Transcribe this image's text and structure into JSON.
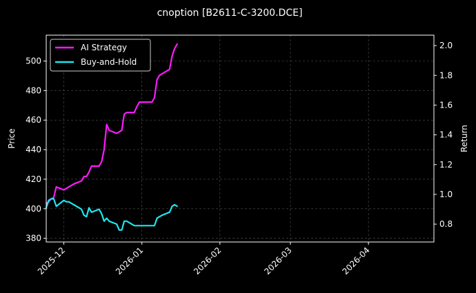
{
  "chart_data": {
    "type": "line",
    "title": "cnoption [B2611-C-3200.DCE]",
    "ylabel_left": "Price",
    "ylabel_right": "Return",
    "y_left_lim": [
      377.5,
      517.5
    ],
    "y_right_lim": [
      0.68,
      2.07
    ],
    "x_range": [
      "2025-11-24",
      "2026-04-27"
    ],
    "x_ticks": [
      "2025-12",
      "2026-01",
      "2026-02",
      "2026-03",
      "2026-04"
    ],
    "y_left_ticks": [
      "380",
      "400",
      "420",
      "440",
      "460",
      "480",
      "500"
    ],
    "y_right_ticks": [
      "0.8",
      "1.0",
      "1.2",
      "1.4",
      "1.6",
      "1.8",
      "2.0"
    ],
    "grid": true,
    "legend_position": "top-left",
    "background": "#000000",
    "series": [
      {
        "name": "AI Strategy",
        "axis": "right",
        "color": "#ff1aff",
        "x": [
          "2025-11-24",
          "2025-11-25",
          "2025-11-26",
          "2025-11-27",
          "2025-11-28",
          "2025-12-01",
          "2025-12-02",
          "2025-12-03",
          "2025-12-04",
          "2025-12-05",
          "2025-12-08",
          "2025-12-09",
          "2025-12-10",
          "2025-12-11",
          "2025-12-12",
          "2025-12-15",
          "2025-12-16",
          "2025-12-17",
          "2025-12-18",
          "2025-12-19",
          "2025-12-22",
          "2025-12-23",
          "2025-12-24",
          "2025-12-25",
          "2025-12-26",
          "2025-12-29",
          "2025-12-30",
          "2025-12-31",
          "2026-01-05",
          "2026-01-06",
          "2026-01-07",
          "2026-01-08",
          "2026-01-09",
          "2026-01-12",
          "2026-01-13",
          "2026-01-14",
          "2026-01-15"
        ],
        "values": [
          0.94,
          0.95,
          0.97,
          0.98,
          1.05,
          1.03,
          1.04,
          1.05,
          1.06,
          1.07,
          1.09,
          1.12,
          1.12,
          1.15,
          1.19,
          1.19,
          1.22,
          1.3,
          1.47,
          1.43,
          1.41,
          1.42,
          1.43,
          1.54,
          1.55,
          1.55,
          1.59,
          1.62,
          1.62,
          1.65,
          1.77,
          1.8,
          1.81,
          1.84,
          1.93,
          1.98,
          2.01
        ]
      },
      {
        "name": "Buy-and-Hold",
        "axis": "right",
        "color": "#1ee6f0",
        "x": [
          "2025-11-24",
          "2025-11-25",
          "2025-11-26",
          "2025-11-27",
          "2025-11-28",
          "2025-12-01",
          "2025-12-02",
          "2025-12-03",
          "2025-12-04",
          "2025-12-05",
          "2025-12-08",
          "2025-12-09",
          "2025-12-10",
          "2025-12-11",
          "2025-12-12",
          "2025-12-15",
          "2025-12-16",
          "2025-12-17",
          "2025-12-18",
          "2025-12-19",
          "2025-12-22",
          "2025-12-23",
          "2025-12-24",
          "2025-12-25",
          "2025-12-26",
          "2025-12-29",
          "2025-12-30",
          "2025-12-31",
          "2026-01-05",
          "2026-01-06",
          "2026-01-07",
          "2026-01-08",
          "2026-01-09",
          "2026-01-12",
          "2026-01-13",
          "2026-01-14",
          "2026-01-15"
        ],
        "values": [
          0.91,
          0.96,
          0.97,
          0.97,
          0.92,
          0.96,
          0.95,
          0.95,
          0.94,
          0.93,
          0.9,
          0.86,
          0.85,
          0.91,
          0.88,
          0.9,
          0.87,
          0.82,
          0.84,
          0.82,
          0.8,
          0.76,
          0.76,
          0.82,
          0.82,
          0.79,
          0.79,
          0.79,
          0.79,
          0.79,
          0.84,
          0.85,
          0.86,
          0.88,
          0.92,
          0.93,
          0.92
        ]
      }
    ]
  }
}
